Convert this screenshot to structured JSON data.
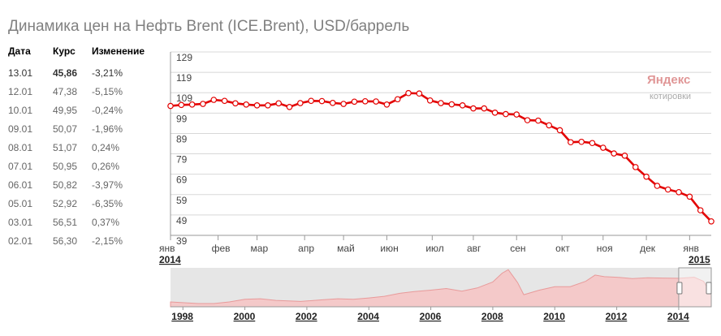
{
  "title": "Динамика цен на Нефть Brent (ICE.Brent), USD/баррель",
  "table": {
    "headers": [
      "Дата",
      "Курс",
      "Изменение"
    ],
    "rows": [
      {
        "date": "13.01",
        "rate": "45,86",
        "change": "-3,21%"
      },
      {
        "date": "12.01",
        "rate": "47,38",
        "change": "-5,15%"
      },
      {
        "date": "10.01",
        "rate": "49,95",
        "change": "-0,24%"
      },
      {
        "date": "09.01",
        "rate": "50,07",
        "change": "-1,96%"
      },
      {
        "date": "08.01",
        "rate": "51,07",
        "change": "0,24%"
      },
      {
        "date": "07.01",
        "rate": "50,95",
        "change": "0,26%"
      },
      {
        "date": "06.01",
        "rate": "50,82",
        "change": "-3,97%"
      },
      {
        "date": "05.01",
        "rate": "52,92",
        "change": "-6,35%"
      },
      {
        "date": "03.01",
        "rate": "56,51",
        "change": "0,37%"
      },
      {
        "date": "02.01",
        "rate": "56,30",
        "change": "-2,15%"
      }
    ]
  },
  "logo": {
    "brand": "Яндекс",
    "sub": "котировки"
  },
  "colors": {
    "line": "#e30000",
    "grid": "#d8d8d8",
    "nav_fill": "#f4c9c9",
    "nav_line": "#e89a9a"
  },
  "chart_data": [
    {
      "type": "line",
      "title": "",
      "ylim": [
        39,
        129
      ],
      "yticks": [
        129,
        119,
        109,
        99,
        89,
        79,
        69,
        59,
        49,
        39
      ],
      "grid": "horizontal",
      "xlabels": [
        {
          "label": "янв",
          "x": 0
        },
        {
          "label": "фев",
          "x": 1.1
        },
        {
          "label": "мар",
          "x": 2.0
        },
        {
          "label": "апр",
          "x": 3.1
        },
        {
          "label": "май",
          "x": 4.0
        },
        {
          "label": "июн",
          "x": 5.0
        },
        {
          "label": "июл",
          "x": 6.05
        },
        {
          "label": "авг",
          "x": 7.0
        },
        {
          "label": "сен",
          "x": 8.0
        },
        {
          "label": "окт",
          "x": 9.05
        },
        {
          "label": "ноя",
          "x": 10.0
        },
        {
          "label": "дек",
          "x": 11.0
        },
        {
          "label": "янв",
          "x": 12.0
        }
      ],
      "year_labels": [
        {
          "label": "2014",
          "x": 0
        },
        {
          "label": "2015",
          "x": 12.5
        }
      ],
      "x": [
        0,
        0.25,
        0.5,
        0.75,
        1.0,
        1.25,
        1.5,
        1.75,
        2.0,
        2.25,
        2.5,
        2.75,
        3.0,
        3.25,
        3.5,
        3.75,
        4.0,
        4.25,
        4.5,
        4.75,
        5.0,
        5.25,
        5.5,
        5.75,
        6.0,
        6.25,
        6.5,
        6.75,
        7.0,
        7.25,
        7.5,
        7.75,
        8.0,
        8.25,
        8.5,
        8.75,
        9.0,
        9.25,
        9.5,
        9.75,
        10.0,
        10.25,
        10.5,
        10.75,
        11.0,
        11.25,
        11.5,
        11.75,
        12.0,
        12.25,
        12.5
      ],
      "y": [
        102.5,
        103.0,
        103.2,
        103.5,
        105.5,
        105.0,
        103.8,
        103.2,
        102.8,
        102.8,
        103.8,
        102.0,
        103.9,
        105.0,
        104.9,
        104.0,
        103.5,
        104.6,
        104.8,
        104.7,
        103.2,
        105.8,
        108.8,
        108.6,
        105.2,
        103.9,
        103.3,
        102.8,
        101.3,
        101.3,
        99.2,
        98.5,
        98.3,
        95.5,
        95.3,
        93.0,
        90.6,
        84.7,
        84.9,
        84.3,
        82.0,
        79.2,
        78.1,
        72.5,
        67.8,
        63.3,
        61.5,
        60.2,
        58.0,
        51.3,
        45.86
      ]
    },
    {
      "type": "area",
      "title": "",
      "xlabels": [
        "1998",
        "2000",
        "2002",
        "2004",
        "2006",
        "2008",
        "2010",
        "2012",
        "2014"
      ],
      "x": [
        1997.6,
        1998.5,
        1999.0,
        1999.5,
        2000.0,
        2000.5,
        2001.0,
        2001.8,
        2002.5,
        2003.0,
        2003.5,
        2004.0,
        2004.5,
        2005.0,
        2005.5,
        2006.0,
        2006.5,
        2007.0,
        2007.5,
        2008.0,
        2008.3,
        2008.5,
        2008.8,
        2009.0,
        2009.5,
        2010.0,
        2010.5,
        2011.0,
        2011.3,
        2011.6,
        2012.0,
        2012.5,
        2013.0,
        2013.5,
        2014.0,
        2014.5,
        2014.8,
        2015.05
      ],
      "y": [
        18,
        12,
        12,
        18,
        28,
        30,
        24,
        20,
        26,
        30,
        28,
        33,
        39,
        50,
        57,
        62,
        68,
        58,
        70,
        92,
        125,
        138,
        90,
        45,
        62,
        75,
        75,
        95,
        118,
        112,
        110,
        105,
        108,
        107,
        106,
        110,
        95,
        46
      ]
    }
  ]
}
